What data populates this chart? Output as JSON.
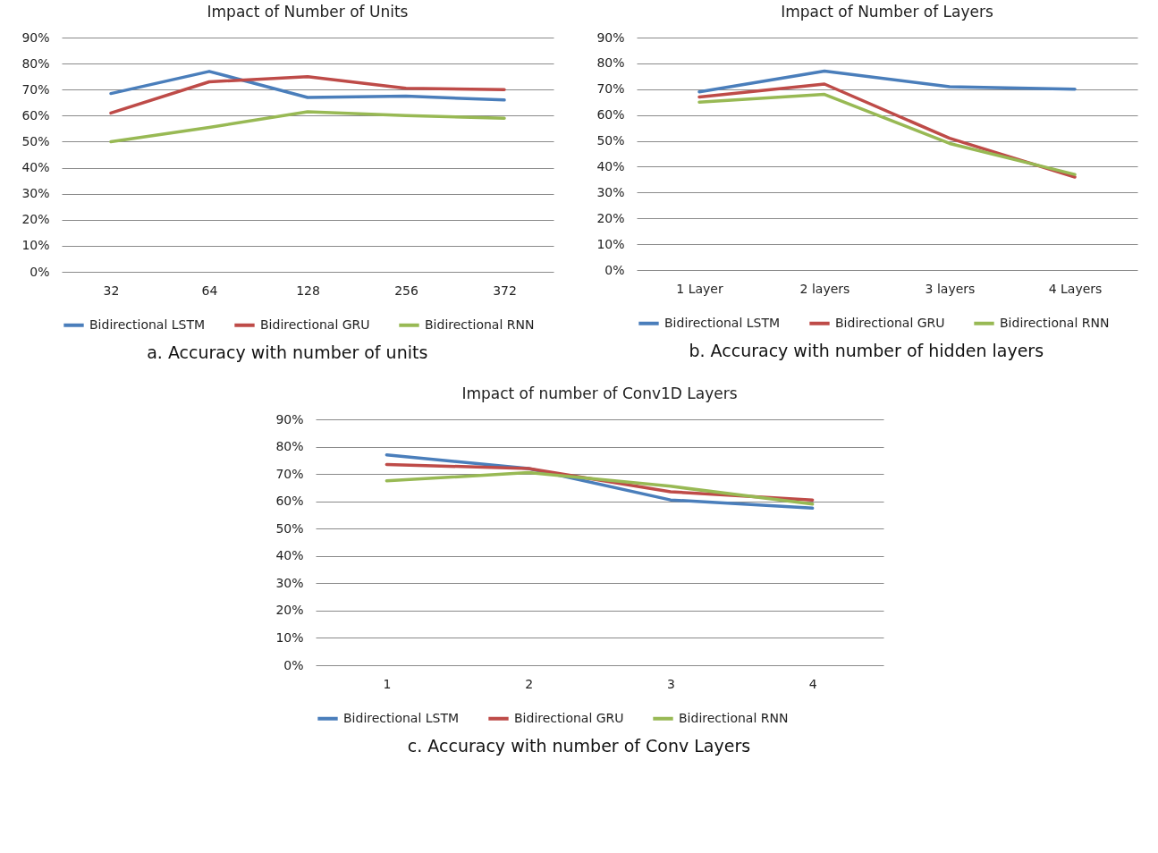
{
  "chart_data": [
    {
      "type": "line",
      "title": "Impact of Number of Units",
      "categories": [
        "32",
        "64",
        "128",
        "256",
        "372"
      ],
      "series": [
        {
          "name": "Bidirectional LSTM",
          "color": "#4a7ebb",
          "values": [
            68.5,
            77,
            67,
            67.5,
            66
          ]
        },
        {
          "name": "Bidirectional GRU",
          "color": "#be4b48",
          "values": [
            61,
            73,
            75,
            70.5,
            70
          ]
        },
        {
          "name": "Bidirectional RNN",
          "color": "#98b954",
          "values": [
            50,
            55.5,
            61.5,
            60,
            59
          ]
        }
      ],
      "ylim": [
        0,
        90
      ],
      "yticks": [
        {
          "value": 0,
          "label": "0%"
        },
        {
          "value": 10,
          "label": "10%"
        },
        {
          "value": 20,
          "label": "20%"
        },
        {
          "value": 30,
          "label": "30%"
        },
        {
          "value": 40,
          "label": "40%"
        },
        {
          "value": 50,
          "label": "50%"
        },
        {
          "value": 60,
          "label": "60%"
        },
        {
          "value": 70,
          "label": "70%"
        },
        {
          "value": 80,
          "label": "80%"
        },
        {
          "value": 90,
          "label": "90%"
        }
      ],
      "grid": "y",
      "legend": "bottom",
      "annotations": [
        "a. Accuracy with number of units"
      ]
    },
    {
      "type": "line",
      "title": "Impact of Number of Layers",
      "categories": [
        "1 Layer",
        "2 layers",
        "3 layers",
        "4 Layers"
      ],
      "series": [
        {
          "name": "Bidirectional LSTM",
          "color": "#4a7ebb",
          "values": [
            69,
            77,
            71,
            70
          ]
        },
        {
          "name": "Bidirectional GRU",
          "color": "#be4b48",
          "values": [
            67,
            72,
            51,
            36
          ]
        },
        {
          "name": "Bidirectional RNN",
          "color": "#98b954",
          "values": [
            65,
            68,
            49,
            37
          ]
        }
      ],
      "ylim": [
        0,
        90
      ],
      "yticks": [
        {
          "value": 0,
          "label": "0%"
        },
        {
          "value": 10,
          "label": "10%"
        },
        {
          "value": 20,
          "label": "20%"
        },
        {
          "value": 30,
          "label": "30%"
        },
        {
          "value": 40,
          "label": "40%"
        },
        {
          "value": 50,
          "label": "50%"
        },
        {
          "value": 60,
          "label": "60%"
        },
        {
          "value": 70,
          "label": "70%"
        },
        {
          "value": 80,
          "label": "80%"
        },
        {
          "value": 90,
          "label": "90%"
        }
      ],
      "grid": "y",
      "legend": "bottom",
      "annotations": [
        "b. Accuracy with number of hidden layers"
      ]
    },
    {
      "type": "line",
      "title": "Impact of  number of Conv1D Layers",
      "categories": [
        "1",
        "2",
        "3",
        "4"
      ],
      "series": [
        {
          "name": "Bidirectional LSTM",
          "color": "#4a7ebb",
          "values": [
            77,
            72,
            60.5,
            57.5
          ]
        },
        {
          "name": "Bidirectional GRU",
          "color": "#be4b48",
          "values": [
            73.5,
            72,
            63.5,
            60.5
          ]
        },
        {
          "name": "Bidirectional RNN",
          "color": "#98b954",
          "values": [
            67.5,
            70.5,
            65.5,
            59
          ]
        }
      ],
      "ylim": [
        0,
        90
      ],
      "yticks": [
        {
          "value": 0,
          "label": "0%"
        },
        {
          "value": 10,
          "label": "10%"
        },
        {
          "value": 20,
          "label": "20%"
        },
        {
          "value": 30,
          "label": "30%"
        },
        {
          "value": 40,
          "label": "40%"
        },
        {
          "value": 50,
          "label": "50%"
        },
        {
          "value": 60,
          "label": "60%"
        },
        {
          "value": 70,
          "label": "70%"
        },
        {
          "value": 80,
          "label": "80%"
        },
        {
          "value": 90,
          "label": "90%"
        }
      ],
      "grid": "y",
      "legend": "bottom",
      "annotations": [
        "c. Accuracy with number of Conv Layers"
      ]
    }
  ]
}
